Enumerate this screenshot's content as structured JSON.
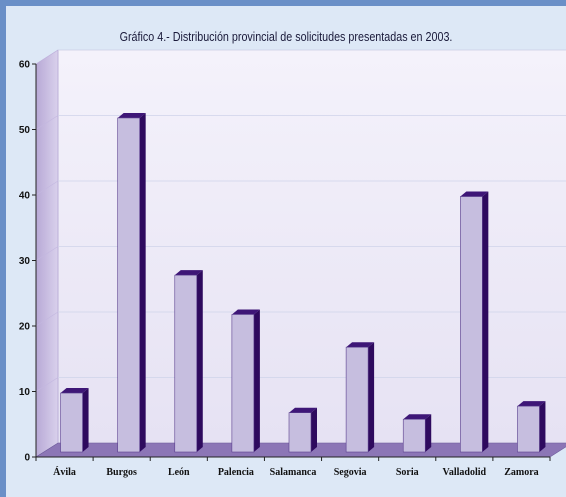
{
  "chart_data": {
    "type": "bar",
    "title": "Gráfico 4.-  Distribución provincial de solicitudes presentadas en 2003.",
    "categories": [
      "Ávila",
      "Burgos",
      "León",
      "Palencia",
      "Salamanca",
      "Segovia",
      "Soria",
      "Valladolid",
      "Zamora"
    ],
    "values": [
      9,
      51,
      27,
      21,
      6,
      16,
      5,
      39,
      7
    ],
    "ylim": [
      0,
      60
    ],
    "yticks": [
      "0",
      "10",
      "20",
      "30",
      "40",
      "50",
      "60"
    ],
    "xlabel": "",
    "ylabel": "",
    "grid": true,
    "colors": {
      "bar_front": "#c6bedf",
      "bar_side": "#2e0a5e",
      "bar_top": "#3e1677",
      "floor": "#8c76b6",
      "wall": "#f0effa",
      "background": "#dde8f6",
      "border": "#6a8fc7"
    }
  }
}
